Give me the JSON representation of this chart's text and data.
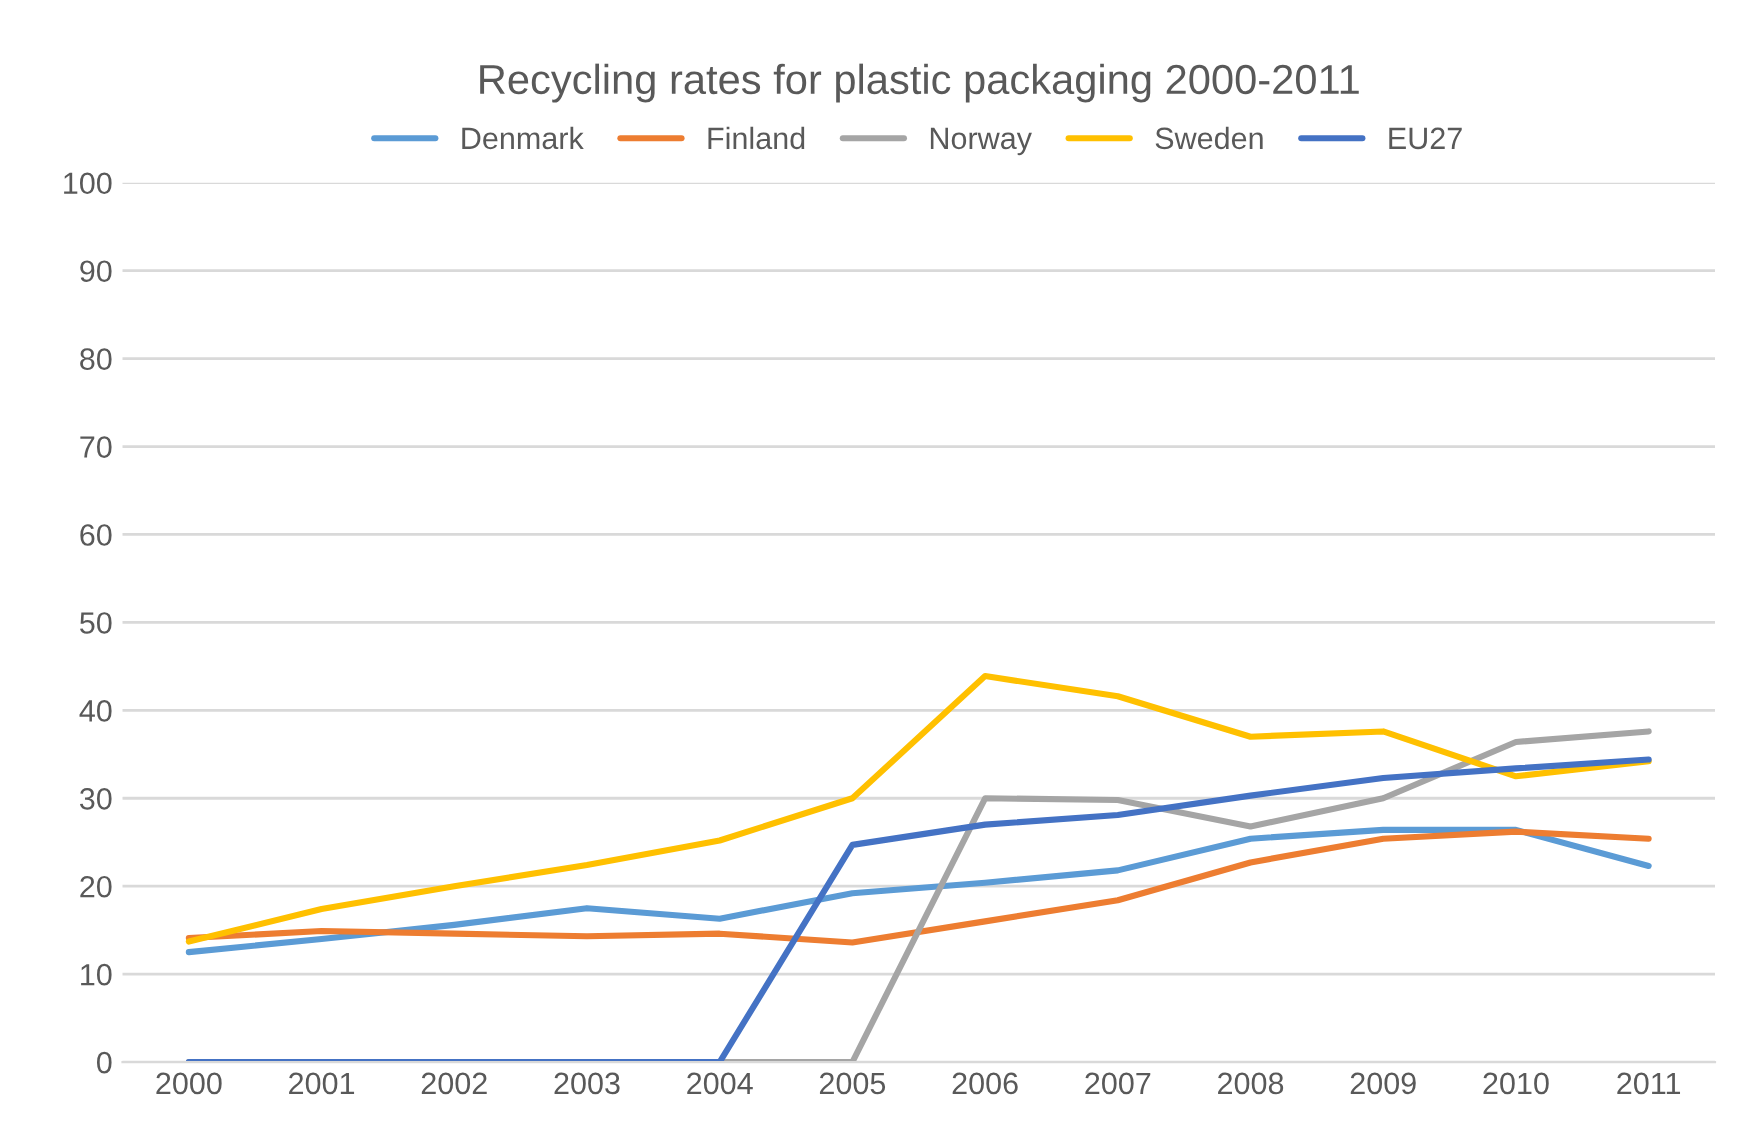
{
  "chart_data": {
    "type": "line",
    "title": "Recycling rates for plastic packaging 2000-2011",
    "categories": [
      "2000",
      "2001",
      "2002",
      "2003",
      "2004",
      "2005",
      "2006",
      "2007",
      "2008",
      "2009",
      "2010",
      "2011"
    ],
    "series": [
      {
        "name": "Denmark",
        "color": "#5b9bd5",
        "values": [
          12.5,
          14,
          15.6,
          17.5,
          16.3,
          19.2,
          20.4,
          21.8,
          25.4,
          26.4,
          26.4,
          22.3
        ]
      },
      {
        "name": "Finland",
        "color": "#ed7d31",
        "values": [
          14.1,
          14.9,
          14.6,
          14.3,
          14.6,
          13.6,
          16,
          18.4,
          22.7,
          25.4,
          26.2,
          25.4
        ]
      },
      {
        "name": "Norway",
        "color": "#a5a5a5",
        "values": [
          0,
          0,
          0,
          0,
          0,
          0,
          30,
          29.8,
          26.8,
          30,
          36.4,
          37.6
        ]
      },
      {
        "name": "Sweden",
        "color": "#ffc000",
        "values": [
          13.7,
          17.4,
          20,
          22.4,
          25.2,
          30,
          43.9,
          41.6,
          37,
          37.6,
          32.5,
          34.2
        ]
      },
      {
        "name": "EU27",
        "color": "#4472c4",
        "values": [
          0,
          0,
          0,
          0,
          0,
          24.7,
          27,
          28.1,
          30.3,
          32.3,
          33.4,
          34.4
        ]
      }
    ],
    "ylim": [
      0,
      100
    ],
    "yticks": [
      0,
      10,
      20,
      30,
      40,
      50,
      60,
      70,
      80,
      90,
      100
    ],
    "grid": "y",
    "legend": "top",
    "marker": "none",
    "line_style": "solid"
  }
}
